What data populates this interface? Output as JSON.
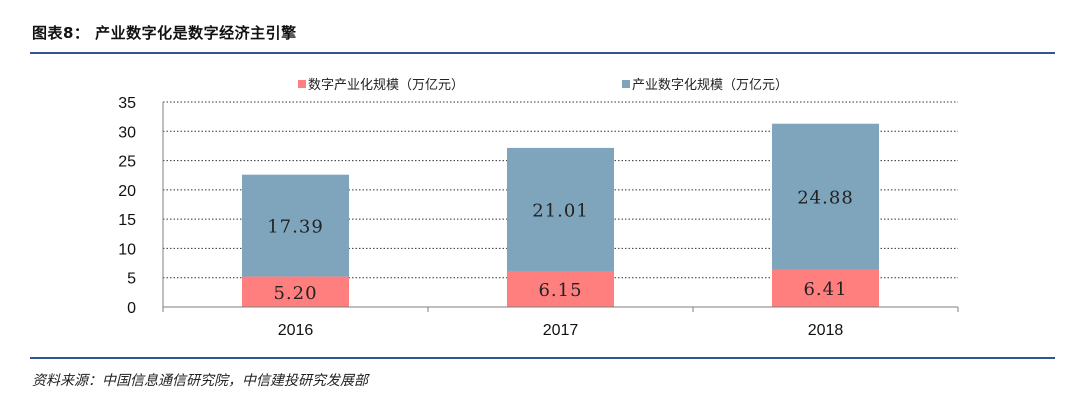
{
  "header": {
    "title": "图表8： 产业数字化是数字经济主引擎"
  },
  "footer": {
    "source": "资料来源：中国信息通信研究院，中信建投研究发展部"
  },
  "chart_data": {
    "type": "bar",
    "stacked": true,
    "categories": [
      "2016",
      "2017",
      "2018"
    ],
    "series": [
      {
        "name": "数字产业化规模（万亿元）",
        "color": "#ff7f7f",
        "values": [
          5.2,
          6.15,
          6.41
        ],
        "labels": [
          "5.20",
          "6.15",
          "6.41"
        ]
      },
      {
        "name": "产业数字化规模（万亿元）",
        "color": "#7fa5bd",
        "values": [
          17.39,
          21.01,
          24.88
        ],
        "labels": [
          "17.39",
          "21.01",
          "24.88"
        ]
      }
    ],
    "ylim": [
      0,
      35
    ],
    "yticks": [
      "0",
      "5",
      "10",
      "15",
      "20",
      "25",
      "30",
      "35"
    ],
    "grid": true,
    "legend_position": "top"
  }
}
